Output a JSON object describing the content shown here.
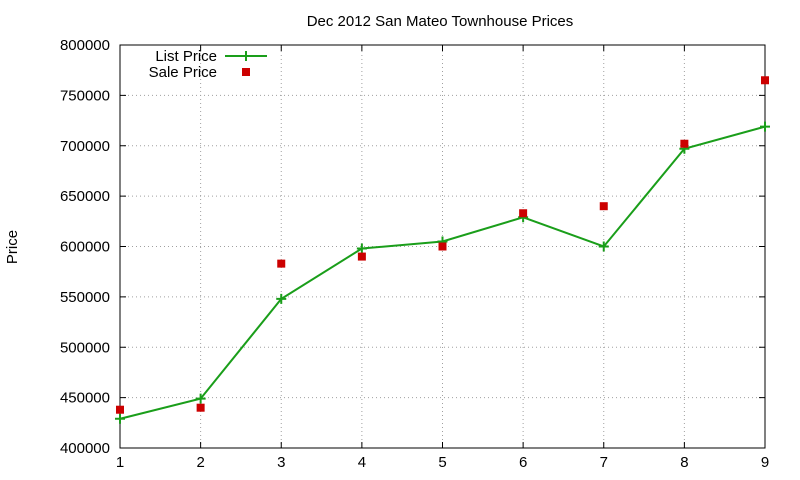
{
  "chart_data": {
    "type": "line",
    "title": "Dec 2012 San Mateo Townhouse Prices",
    "xlabel": "",
    "ylabel": "Price",
    "xlim": [
      1,
      9
    ],
    "ylim": [
      400000,
      800000
    ],
    "x_ticks": [
      1,
      2,
      3,
      4,
      5,
      6,
      7,
      8,
      9
    ],
    "y_ticks": [
      400000,
      450000,
      500000,
      550000,
      600000,
      650000,
      700000,
      750000,
      800000
    ],
    "grid": true,
    "legend_position": "top-left",
    "series": [
      {
        "name": "List Price",
        "style": "linespoints",
        "marker": "plus",
        "color": "#1a9e1a",
        "x": [
          1,
          2,
          3,
          4,
          5,
          6,
          7,
          8,
          9
        ],
        "y": [
          429000,
          449000,
          548000,
          598000,
          605000,
          629000,
          600000,
          697000,
          719000
        ]
      },
      {
        "name": "Sale Price",
        "style": "points",
        "marker": "square",
        "color": "#cc0000",
        "x": [
          1,
          2,
          3,
          4,
          5,
          6,
          7,
          8,
          9
        ],
        "y": [
          438000,
          440000,
          583000,
          590000,
          600000,
          633000,
          640000,
          702000,
          765000
        ]
      }
    ]
  }
}
